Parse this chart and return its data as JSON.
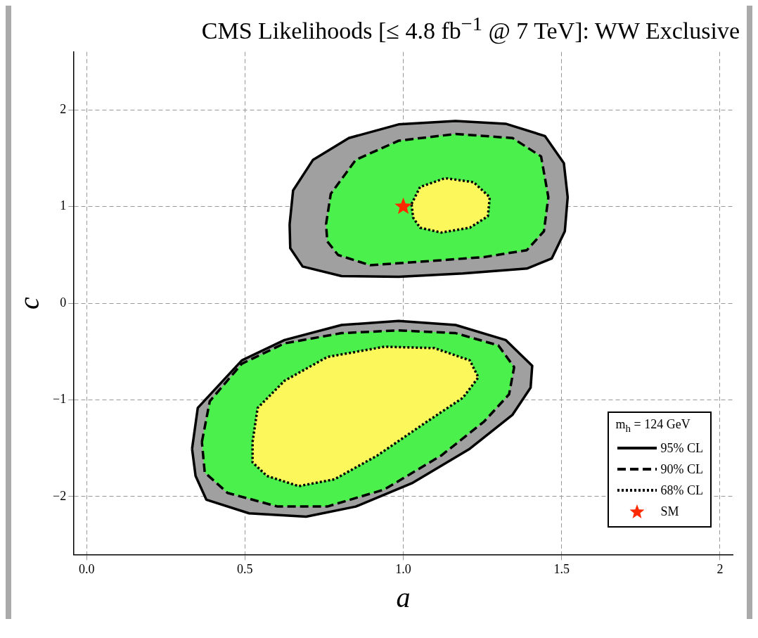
{
  "chart_data": {
    "type": "area",
    "title": "CMS Likelihoods [≤ 4.8 fb$^{−1}$ @ 7 TeV]: WW Exclusive",
    "xlabel": "a",
    "ylabel": "c",
    "legend_title": "m$_{h}$ = 124 GeV",
    "legend": "bottom right",
    "grid": true,
    "xlim": [
      -0.04,
      2.04
    ],
    "ylim": [
      -2.6,
      2.6
    ],
    "xticks": [
      {
        "value": 0,
        "label": "0.0"
      },
      {
        "value": 0.5,
        "label": "0.5"
      },
      {
        "value": 1,
        "label": "1.0"
      },
      {
        "value": 1.5,
        "label": "1.5"
      },
      2
    ],
    "yticks": [
      {
        "value": -2,
        "label": "−2"
      },
      {
        "value": -1,
        "label": "−1"
      },
      0,
      1,
      2
    ],
    "series": [
      {
        "name": "95% CL",
        "line_style": "solid",
        "color": "#a0a0a0",
        "x": [
          0.641,
          0.652,
          0.715,
          0.828,
          0.985,
          1.165,
          1.323,
          1.447,
          1.507,
          1.519,
          1.51,
          1.469,
          1.39,
          1.188,
          0.985,
          0.805,
          0.682,
          0.643,
          0.641
        ],
        "values": [
          0.816,
          1.167,
          1.484,
          1.709,
          1.85,
          1.885,
          1.857,
          1.73,
          1.449,
          1.097,
          0.745,
          0.464,
          0.359,
          0.309,
          0.274,
          0.281,
          0.38,
          0.57,
          0.816
        ]
      },
      {
        "line_style": "solid",
        "color": "#a0a0a0",
        "x": [
          0.333,
          0.351,
          0.49,
          0.625,
          0.805,
          0.985,
          1.165,
          1.323,
          1.407,
          1.402,
          1.345,
          1.21,
          1.03,
          0.85,
          0.693,
          0.513,
          0.378,
          0.344,
          0.333
        ],
        "values": [
          -1.505,
          -1.083,
          -0.591,
          -0.38,
          -0.225,
          -0.183,
          -0.225,
          -0.38,
          -0.647,
          -0.872,
          -1.153,
          -1.505,
          -1.857,
          -2.103,
          -2.208,
          -2.173,
          -2.032,
          -1.786,
          -1.505
        ]
      },
      {
        "name": "90% CL",
        "line_style": "dashed",
        "color": "#4cf04c",
        "x": [
          0.756,
          0.771,
          0.85,
          0.985,
          1.165,
          1.345,
          1.435,
          1.458,
          1.444,
          1.39,
          1.255,
          1.053,
          0.895,
          0.794,
          0.76,
          0.756
        ],
        "values": [
          0.816,
          1.132,
          1.484,
          1.681,
          1.751,
          1.709,
          1.519,
          1.097,
          0.745,
          0.549,
          0.478,
          0.429,
          0.394,
          0.499,
          0.64,
          0.816
        ]
      },
      {
        "line_style": "dashed",
        "color": "#4cf04c",
        "x": [
          0.364,
          0.389,
          0.49,
          0.625,
          0.805,
          0.985,
          1.165,
          1.3,
          1.35,
          1.334,
          1.255,
          1.12,
          0.94,
          0.76,
          0.603,
          0.445,
          0.373,
          0.364
        ],
        "values": [
          -1.435,
          -1.013,
          -0.626,
          -0.415,
          -0.309,
          -0.281,
          -0.309,
          -0.436,
          -0.661,
          -0.942,
          -1.224,
          -1.575,
          -1.927,
          -2.103,
          -2.103,
          -1.962,
          -1.751,
          -1.435
        ]
      },
      {
        "name": "68% CL",
        "line_style": "dotted",
        "color": "#fcf85c",
        "x": [
          1.026,
          1.053,
          1.132,
          1.222,
          1.273,
          1.267,
          1.21,
          1.12,
          1.053,
          1.031,
          1.026
        ],
        "values": [
          1.027,
          1.203,
          1.294,
          1.252,
          1.097,
          0.9,
          0.781,
          0.731,
          0.781,
          0.886,
          1.027
        ]
      },
      {
        "line_style": "dotted",
        "color": "#fcf85c",
        "x": [
          0.524,
          0.54,
          0.625,
          0.76,
          0.94,
          1.098,
          1.21,
          1.237,
          1.188,
          1.075,
          0.918,
          0.783,
          0.67,
          0.569,
          0.524,
          0.524
        ],
        "values": [
          -1.435,
          -1.083,
          -0.802,
          -0.556,
          -0.45,
          -0.464,
          -0.591,
          -0.767,
          -0.978,
          -1.224,
          -1.575,
          -1.821,
          -1.892,
          -1.786,
          -1.646,
          -1.435
        ]
      },
      {
        "name": "SM",
        "type": "scatter",
        "marker": "star",
        "color": "#ff2a00",
        "x": [
          1
        ],
        "values": [
          1
        ]
      }
    ]
  }
}
